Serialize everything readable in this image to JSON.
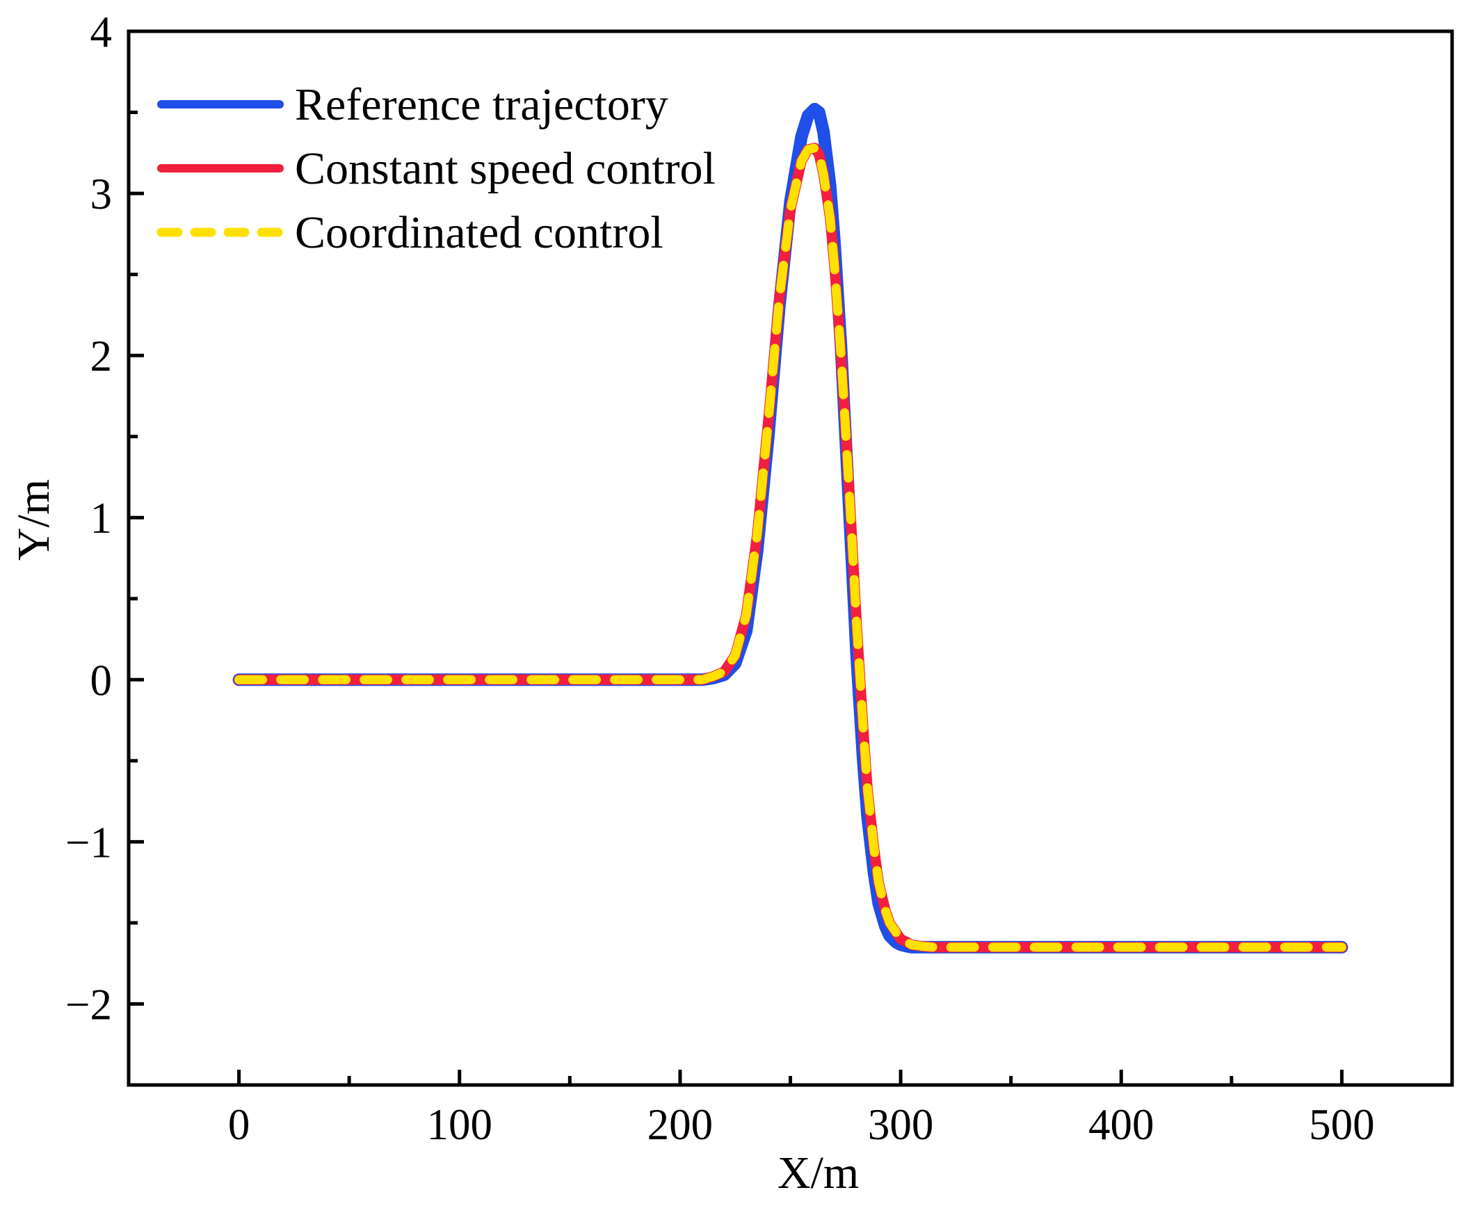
{
  "chart_data": {
    "type": "line",
    "title": "",
    "xlabel": "X/m",
    "ylabel": "Y/m",
    "xlim": [
      -50,
      550
    ],
    "ylim": [
      -2.5,
      4
    ],
    "x_ticks": [
      0,
      100,
      200,
      300,
      400,
      500
    ],
    "x_tick_labels": [
      "0",
      "100",
      "200",
      "300",
      "400",
      "500"
    ],
    "y_ticks": [
      -2,
      -1,
      0,
      1,
      2,
      3,
      4
    ],
    "y_tick_labels": [
      "−2",
      "−1",
      "0",
      "1",
      "2",
      "3",
      "4"
    ],
    "x_minor_step": 50,
    "y_minor_step": 0.5,
    "grid": false,
    "legend_position": "top-left",
    "series": [
      {
        "name": "Reference trajectory",
        "color": "#1f4ee8",
        "style": "solid",
        "x": [
          0,
          50,
          100,
          150,
          200,
          210,
          215,
          220,
          225,
          230,
          235,
          240,
          245,
          250,
          255,
          258,
          261,
          263,
          265,
          268,
          270,
          273,
          275,
          278,
          280,
          283,
          285,
          288,
          290,
          293,
          295,
          298,
          300,
          303,
          305,
          310,
          315,
          320,
          350,
          400,
          450,
          500
        ],
        "y": [
          0,
          0,
          0,
          0,
          0,
          0.0,
          0.01,
          0.03,
          0.1,
          0.3,
          0.8,
          1.5,
          2.3,
          2.95,
          3.35,
          3.48,
          3.52,
          3.5,
          3.38,
          3.05,
          2.7,
          2.05,
          1.5,
          0.7,
          0.15,
          -0.5,
          -0.85,
          -1.2,
          -1.38,
          -1.52,
          -1.58,
          -1.62,
          -1.635,
          -1.645,
          -1.65,
          -1.65,
          -1.65,
          -1.65,
          -1.65,
          -1.65,
          -1.65,
          -1.65
        ]
      },
      {
        "name": "Constant speed control",
        "color": "#f21f3e",
        "style": "solid",
        "x": [
          0,
          50,
          100,
          150,
          200,
          210,
          215,
          220,
          225,
          230,
          235,
          240,
          245,
          250,
          255,
          258,
          261,
          263,
          265,
          268,
          270,
          273,
          275,
          278,
          280,
          283,
          285,
          288,
          290,
          293,
          295,
          298,
          300,
          303,
          305,
          310,
          315,
          320,
          350,
          400,
          450,
          500
        ],
        "y": [
          0,
          0,
          0,
          0,
          0,
          0.0,
          0.02,
          0.05,
          0.15,
          0.4,
          0.9,
          1.6,
          2.35,
          2.9,
          3.2,
          3.27,
          3.28,
          3.24,
          3.12,
          2.85,
          2.55,
          2.0,
          1.55,
          0.85,
          0.35,
          -0.3,
          -0.68,
          -1.05,
          -1.25,
          -1.42,
          -1.5,
          -1.56,
          -1.6,
          -1.62,
          -1.635,
          -1.645,
          -1.65,
          -1.65,
          -1.65,
          -1.65,
          -1.65,
          -1.65
        ]
      },
      {
        "name": "Coordinated control",
        "color": "#ffe000",
        "style": "dashed",
        "x": [
          0,
          50,
          100,
          150,
          200,
          210,
          215,
          220,
          225,
          230,
          235,
          240,
          245,
          250,
          255,
          258,
          261,
          263,
          265,
          268,
          270,
          273,
          275,
          278,
          280,
          283,
          285,
          288,
          290,
          293,
          295,
          298,
          300,
          303,
          305,
          310,
          315,
          320,
          350,
          400,
          450,
          500
        ],
        "y": [
          0,
          0,
          0,
          0,
          0,
          0.0,
          0.02,
          0.05,
          0.15,
          0.4,
          0.9,
          1.6,
          2.35,
          2.9,
          3.2,
          3.27,
          3.28,
          3.24,
          3.12,
          2.85,
          2.55,
          2.0,
          1.55,
          0.85,
          0.35,
          -0.3,
          -0.68,
          -1.05,
          -1.25,
          -1.42,
          -1.5,
          -1.56,
          -1.6,
          -1.62,
          -1.635,
          -1.645,
          -1.65,
          -1.65,
          -1.65,
          -1.65,
          -1.65,
          -1.65
        ]
      }
    ]
  }
}
